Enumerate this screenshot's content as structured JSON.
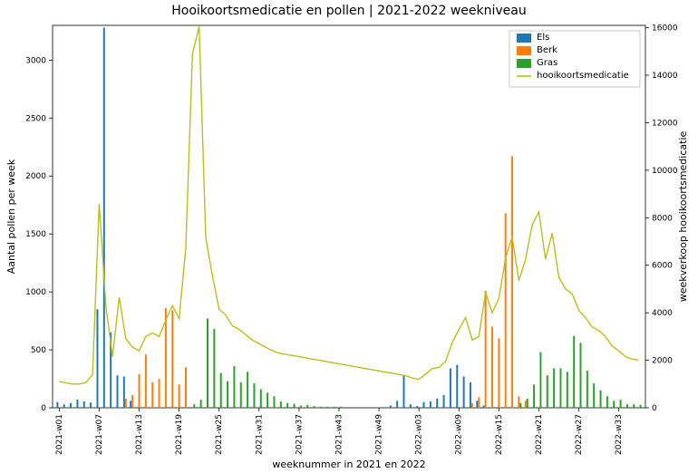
{
  "title": "Hooikoortsmedicatie en pollen | 2021-2022 weekniveau",
  "xlabel": "weeknummer in 2021 en 2022",
  "ylabel_left": "Aantal pollen per week",
  "ylabel_right": "weekverkoop hooikoortsmedicatie",
  "legend": {
    "els": "Els",
    "berk": "Berk",
    "gras": "Gras",
    "med": "hooikoortsmedicatie"
  },
  "colors": {
    "els": "#1f77b4",
    "berk": "#ff7f0e",
    "gras": "#2ca02c",
    "med": "#bcbd22",
    "background": "#ffffff",
    "grid": "#b0b0b0",
    "spine": "#000000",
    "text": "#000000"
  },
  "styling": {
    "title_fontsize": 14,
    "label_fontsize": 11,
    "tick_fontsize": 9,
    "legend_fontsize": 10,
    "bar_width": 0.27,
    "line_width": 1.4
  },
  "chart": {
    "type": "grouped_bar_with_line_dual_axis",
    "n_weeks": 88,
    "xlim": [
      -1,
      88
    ],
    "ylim_left": [
      0,
      3300
    ],
    "ylim_right": [
      0,
      16100
    ],
    "ytick_left": [
      0,
      500,
      1000,
      1500,
      2000,
      2500,
      3000
    ],
    "ytick_right": [
      0,
      2000,
      4000,
      6000,
      8000,
      10000,
      12000,
      14000,
      16000
    ],
    "xtick_step": 6,
    "xtick_indices": [
      0,
      6,
      12,
      18,
      24,
      30,
      36,
      42,
      48,
      54,
      60,
      66,
      72,
      78,
      84
    ],
    "xtick_labels": [
      "2021-w01",
      "2021-w07",
      "2021-w13",
      "2021-w19",
      "2021-w25",
      "2021-w31",
      "2021-w37",
      "2021-w43",
      "2021-w49",
      "2022-w03",
      "2022-w09",
      "2022-w15",
      "2022-w21",
      "2022-w27",
      "2022-w33"
    ],
    "els": [
      50,
      30,
      40,
      70,
      55,
      45,
      850,
      3280,
      650,
      280,
      270,
      60,
      0,
      0,
      0,
      0,
      0,
      0,
      0,
      0,
      0,
      0,
      0,
      0,
      0,
      0,
      0,
      0,
      0,
      0,
      0,
      0,
      0,
      0,
      0,
      0,
      0,
      0,
      0,
      0,
      0,
      0,
      0,
      0,
      0,
      0,
      0,
      0,
      0,
      0,
      20,
      60,
      280,
      30,
      15,
      50,
      55,
      80,
      110,
      340,
      370,
      270,
      220,
      60,
      20,
      0,
      0,
      0,
      0,
      0,
      0,
      0,
      0,
      0,
      0,
      0,
      0,
      0,
      0,
      0,
      0,
      0,
      0,
      0,
      0,
      0,
      0,
      0
    ],
    "berk": [
      0,
      0,
      0,
      0,
      0,
      0,
      0,
      0,
      0,
      0,
      80,
      110,
      290,
      460,
      220,
      250,
      860,
      840,
      200,
      350,
      0,
      0,
      0,
      0,
      0,
      0,
      0,
      0,
      0,
      0,
      0,
      0,
      0,
      0,
      0,
      0,
      0,
      0,
      0,
      0,
      0,
      0,
      0,
      0,
      0,
      0,
      0,
      0,
      0,
      0,
      0,
      0,
      0,
      0,
      0,
      0,
      0,
      0,
      0,
      0,
      0,
      0,
      40,
      90,
      1010,
      700,
      600,
      1680,
      2170,
      100,
      60,
      0,
      0,
      0,
      0,
      0,
      0,
      0,
      0,
      0,
      0,
      0,
      0,
      0,
      0,
      0,
      0,
      0
    ],
    "gras": [
      0,
      0,
      0,
      0,
      0,
      0,
      0,
      0,
      0,
      0,
      0,
      0,
      0,
      0,
      0,
      0,
      0,
      0,
      0,
      0,
      30,
      70,
      770,
      680,
      300,
      230,
      360,
      220,
      310,
      210,
      160,
      130,
      100,
      55,
      40,
      35,
      20,
      25,
      15,
      10,
      10,
      10,
      10,
      0,
      0,
      0,
      0,
      0,
      0,
      0,
      0,
      0,
      0,
      0,
      0,
      0,
      0,
      0,
      0,
      0,
      0,
      0,
      0,
      0,
      0,
      0,
      0,
      0,
      0,
      40,
      80,
      200,
      480,
      280,
      340,
      340,
      310,
      620,
      560,
      320,
      210,
      150,
      100,
      60,
      70,
      30,
      30,
      25
    ],
    "med": [
      1100,
      1050,
      1000,
      1000,
      1050,
      1400,
      8600,
      4300,
      2150,
      4650,
      2900,
      2550,
      2400,
      3000,
      3150,
      3000,
      3700,
      4300,
      3750,
      6750,
      14900,
      16050,
      7150,
      5550,
      4150,
      3900,
      3450,
      3300,
      3080,
      2850,
      2700,
      2550,
      2400,
      2300,
      2250,
      2200,
      2150,
      2100,
      2050,
      2000,
      1950,
      1900,
      1850,
      1800,
      1750,
      1700,
      1650,
      1600,
      1550,
      1500,
      1450,
      1400,
      1350,
      1250,
      1200,
      1420,
      1650,
      1700,
      1950,
      2750,
      3300,
      3800,
      2850,
      3000,
      4850,
      4000,
      4600,
      6300,
      7200,
      5350,
      6250,
      7700,
      8250,
      6250,
      7350,
      5500,
      5000,
      4800,
      4100,
      3800,
      3400,
      3250,
      3000,
      2600,
      2400,
      2150,
      2050,
      2000
    ]
  }
}
